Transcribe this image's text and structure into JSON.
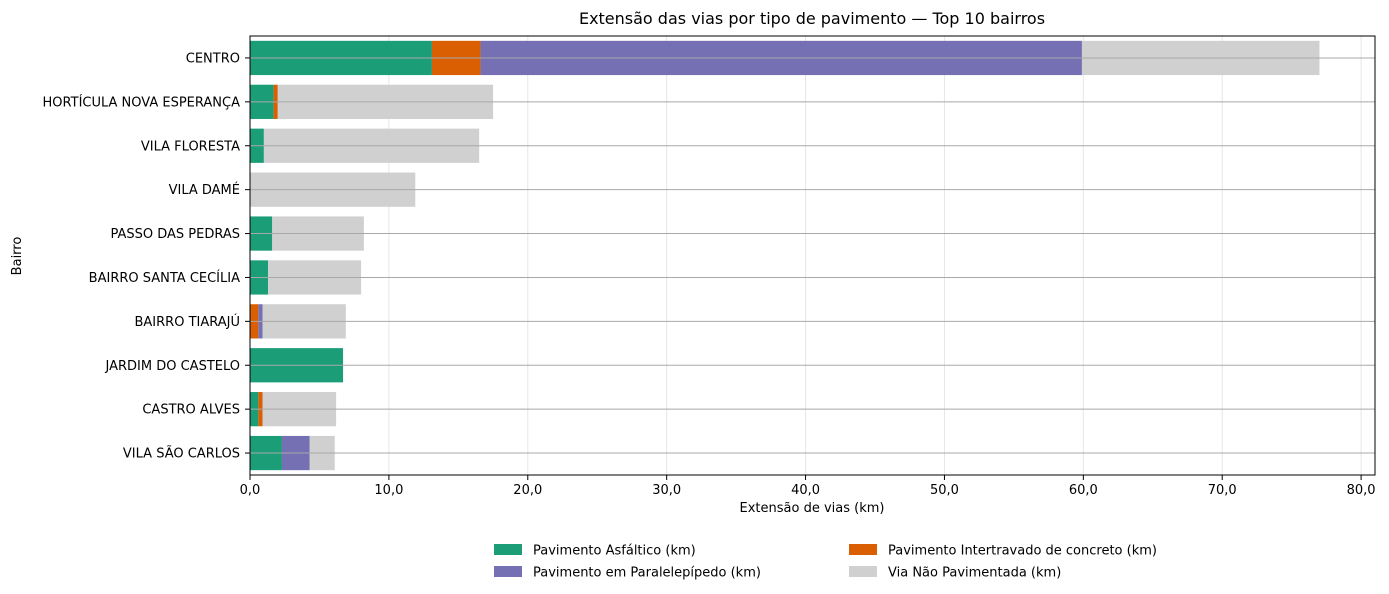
{
  "chart_data": {
    "type": "bar",
    "orientation": "horizontal",
    "stacked": true,
    "title": "Extensão das vias por tipo de pavimento — Top 10 bairros",
    "xlabel": "Extensão de vias (km)",
    "ylabel": "Bairro",
    "xlim": [
      0,
      81
    ],
    "xticks": [
      0,
      10,
      20,
      30,
      40,
      50,
      60,
      70,
      80
    ],
    "xtick_labels": [
      "0,0",
      "10,0",
      "20,0",
      "30,0",
      "40,0",
      "50,0",
      "60,0",
      "70,0",
      "80,0"
    ],
    "grid": "x and y",
    "legend_position": "bottom-center",
    "categories": [
      "CENTRO",
      "HORTÍCULA NOVA ESPERANÇA",
      "VILA FLORESTA",
      "VILA DAMÉ",
      "PASSO DAS PEDRAS",
      "BAIRRO SANTA CECÍLIA",
      "BAIRRO TIARAJÚ",
      "JARDIM DO CASTELO",
      "CASTRO ALVES",
      "VILA SÃO CARLOS"
    ],
    "series": [
      {
        "name": "Pavimento Asfáltico (km)",
        "color": "#1b9e77",
        "values": [
          13.1,
          1.7,
          1.0,
          0.0,
          1.6,
          1.3,
          0.0,
          6.7,
          0.6,
          2.3
        ]
      },
      {
        "name": "Pavimento Intertravado de concreto (km)",
        "color": "#d95f02",
        "values": [
          3.5,
          0.3,
          0.0,
          0.0,
          0.0,
          0.0,
          0.6,
          0.0,
          0.3,
          0.0
        ]
      },
      {
        "name": "Pavimento em Paralelepípedo (km)",
        "color": "#7570b3",
        "values": [
          43.3,
          0.0,
          0.0,
          0.0,
          0.0,
          0.0,
          0.3,
          0.0,
          0.0,
          2.0
        ]
      },
      {
        "name": "Via Não Pavimentada (km)",
        "color": "#d0d0d0",
        "values": [
          17.1,
          15.5,
          15.5,
          11.9,
          6.6,
          6.7,
          6.0,
          0.0,
          5.3,
          1.8
        ]
      }
    ],
    "legend_order": [
      0,
      2,
      1,
      3
    ]
  }
}
